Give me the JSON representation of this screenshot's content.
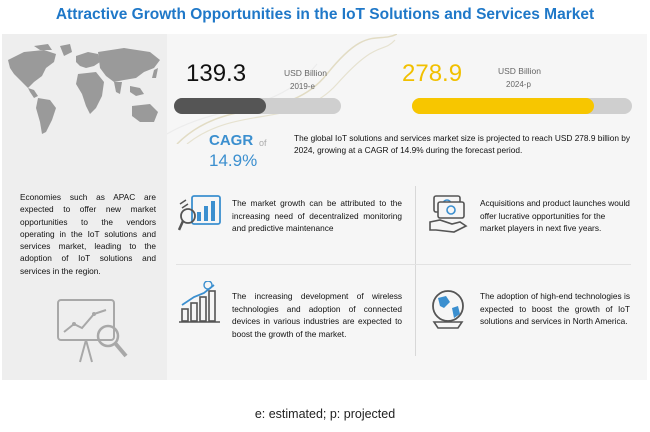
{
  "title": "Attractive Growth Opportunities in the IoT Solutions and Services  Market",
  "left_panel": {
    "description": "Economies such as APAC are expected to offer new market opportunities to the vendors operating in the IoT solutions and services market, leading to the adoption of IoT solutions and services in the region.",
    "region_label": "APAC"
  },
  "stats": {
    "value_2019": "139.3",
    "unit_2019": "USD Billion",
    "year_2019": "2019-e",
    "value_2024": "278.9",
    "unit_2024": "USD Billion",
    "year_2024": "2024-p",
    "cagr_label": "CAGR",
    "cagr_of": "of",
    "cagr_value": "14.9%",
    "summary": "The global IoT solutions and services market size is projected to reach USD 278.9 billion by 2024, growing at a CAGR of 14.9% during the forecast period."
  },
  "points": [
    {
      "icon": "monitoring-chart-icon",
      "text": "The market growth can be attributed to the increasing need of decentralized monitoring and predictive maintenance"
    },
    {
      "icon": "cash-hand-icon",
      "text": "Acquisitions and product launches would offer lucrative opportunities for the market players in next five years."
    },
    {
      "icon": "growth-bars-dollar-icon",
      "text": "The increasing development of wireless technologies and adoption of connected devices in various industries are expected to boost the growth of the market."
    },
    {
      "icon": "globe-icon",
      "text": "The adoption of high-end technologies is expected to boost the growth of IoT solutions and services in North America."
    }
  ],
  "footnote": "e: estimated; p: projected",
  "colors": {
    "title": "#1f78c8",
    "accent_blue": "#3b8fcf",
    "bar_2019": "#555555",
    "bar_2024": "#f7c600",
    "bar_bg": "#cfcfcf"
  }
}
